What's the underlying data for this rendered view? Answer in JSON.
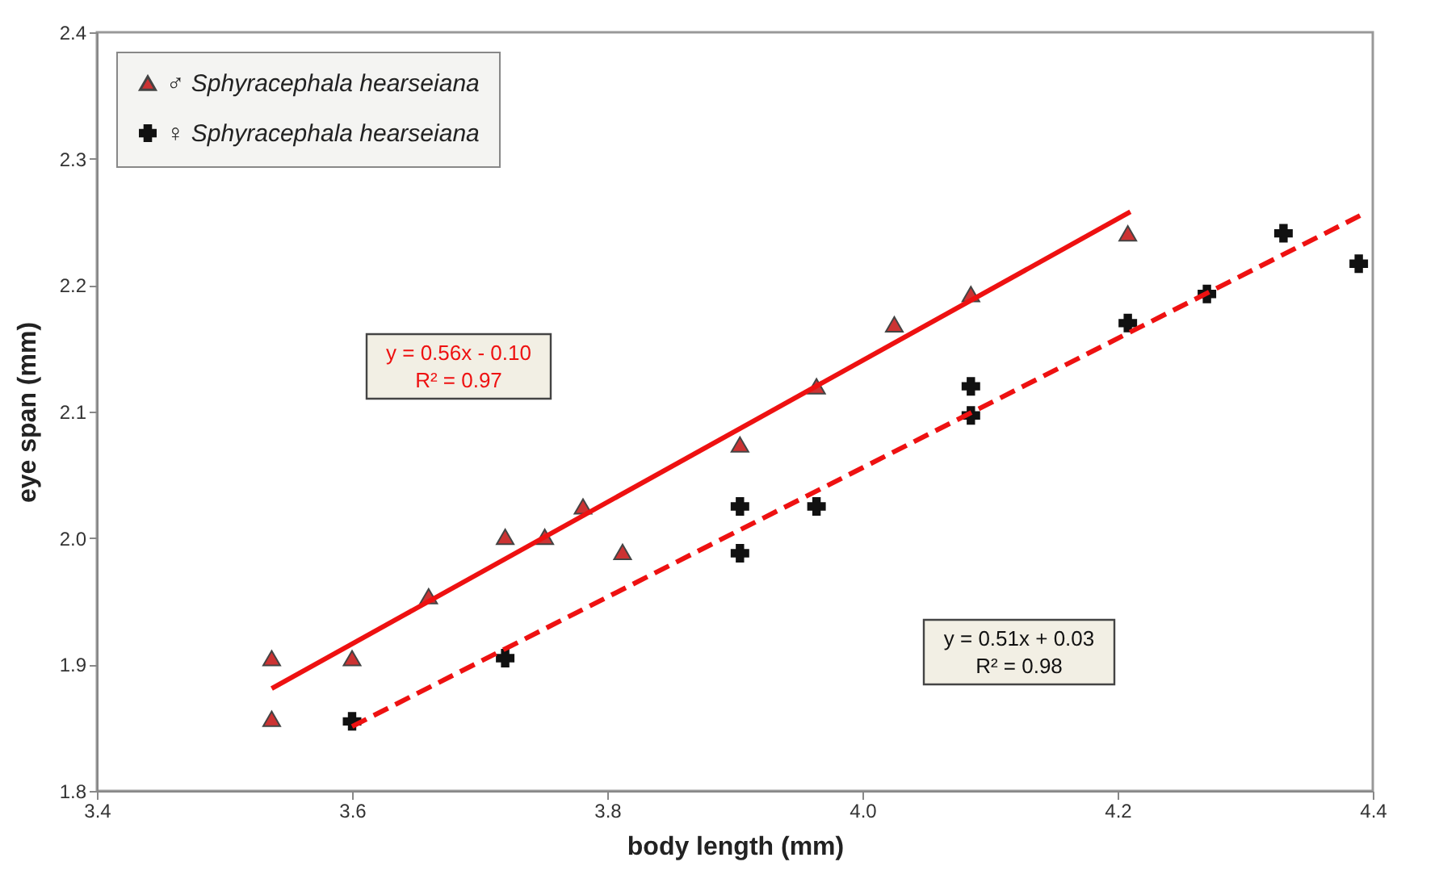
{
  "chart_data": {
    "type": "scatter",
    "xlabel": "body length (mm)",
    "ylabel": "eye span (mm)",
    "xlim": [
      3.4,
      4.4
    ],
    "xticks": [
      3.4,
      3.6,
      3.8,
      {
        "value": 4,
        "label": "4.0"
      },
      4.2,
      4.4
    ],
    "ylim": [
      1.8,
      2.4
    ],
    "yticks": [
      1.8,
      1.9,
      {
        "value": 2,
        "label": "2.0"
      },
      2.1,
      2.2,
      2.3,
      2.4
    ],
    "grid": false,
    "legend": "top left",
    "annotations": [
      "y = 0.56x - 0.10\nR² = 0.97",
      "y = 0.51x + 0.03\nR² = 0.98"
    ],
    "series": [
      {
        "name": "♂ Sphyracephala hearseiana",
        "type": "scatter",
        "marker": "triangle",
        "color": "#cc3333",
        "x": [
          3.537,
          3.537,
          3.6,
          3.66,
          3.72,
          3.751,
          3.781,
          3.812,
          3.904,
          3.964,
          4.025,
          4.085,
          4.208
        ],
        "values": [
          1.905,
          1.857,
          1.905,
          1.954,
          2.001,
          2.001,
          2.025,
          1.989,
          2.074,
          2.12,
          2.169,
          2.193,
          2.241
        ]
      },
      {
        "name": "♀ Sphyracephala hearseiana",
        "type": "scatter",
        "marker": "cross",
        "color": "#111111",
        "x": [
          3.6,
          3.72,
          3.904,
          3.904,
          3.964,
          4.085,
          4.085,
          4.208,
          4.27,
          4.33,
          4.389
        ],
        "values": [
          1.855,
          1.905,
          2.025,
          1.988,
          2.025,
          2.12,
          2.097,
          2.17,
          2.193,
          2.241,
          2.217
        ]
      },
      {
        "type": "line",
        "color": "#ee1111",
        "line_style": "solid",
        "x": [
          3.537,
          4.21
        ],
        "values": [
          1.881,
          2.258
        ]
      },
      {
        "type": "line",
        "color": "#ee1111",
        "line_style": "dashed",
        "x": [
          3.6,
          4.39
        ],
        "values": [
          1.851,
          2.255
        ]
      }
    ]
  }
}
